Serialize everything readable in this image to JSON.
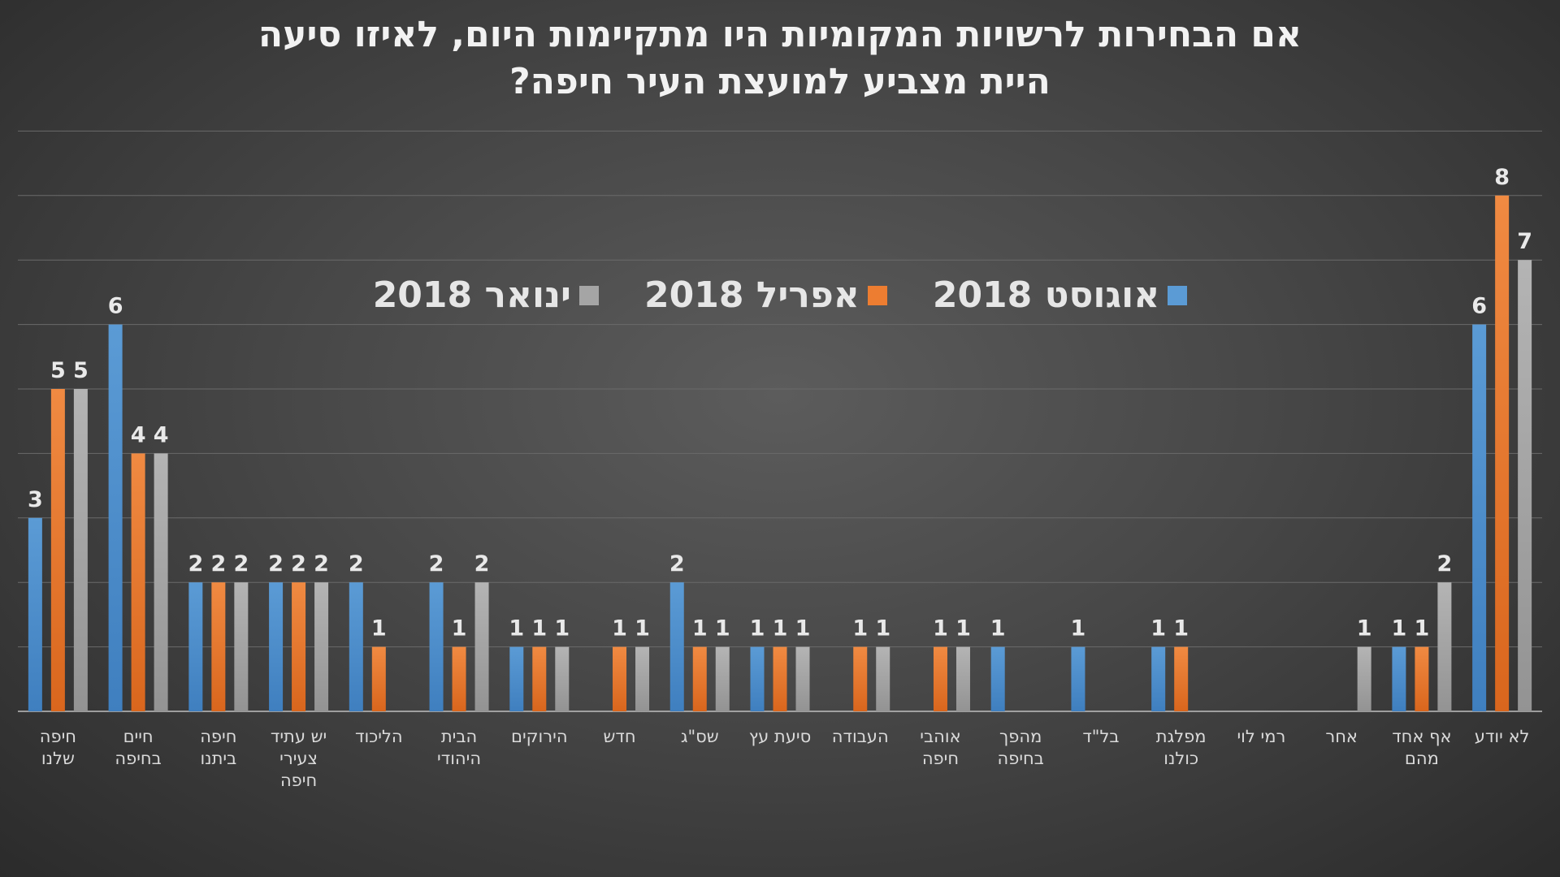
{
  "chart_data": {
    "type": "bar",
    "title_lines": [
      "אם הבחירות לרשויות המקומיות היו מתקיימות היום, לאיזו סיעה",
      "היית מצביע למועצת העיר חיפה?"
    ],
    "categories": [
      [
        "חיפה",
        "שלנו"
      ],
      [
        "חיים",
        "בחיפה"
      ],
      [
        "חיפה",
        "ביתנו"
      ],
      [
        "יש עתיד",
        "צעירי",
        "חיפה"
      ],
      [
        "הליכוד"
      ],
      [
        "הבית",
        "היהודי"
      ],
      [
        "הירוקים"
      ],
      [
        "חדש"
      ],
      [
        "שס\"ג"
      ],
      [
        "סיעת עץ"
      ],
      [
        "העבודה"
      ],
      [
        "אוהבי",
        "חיפה"
      ],
      [
        "מהפך",
        "בחיפה"
      ],
      [
        "בל\"ד"
      ],
      [
        "מפלגת",
        "כולנו"
      ],
      [
        "רמי לוי"
      ],
      [
        "אחר"
      ],
      [
        "אף אחד",
        "מהם"
      ],
      [
        "לא יודע"
      ]
    ],
    "series": [
      {
        "name": "אוגוסט 2018",
        "color": "#5b9bd5",
        "values": [
          3,
          6,
          2,
          2,
          2,
          2,
          1,
          null,
          2,
          1,
          null,
          null,
          1,
          1,
          1,
          null,
          null,
          1,
          6
        ]
      },
      {
        "name": "אפריל 2018",
        "color": "#ed7d31",
        "values": [
          5,
          4,
          2,
          2,
          1,
          1,
          1,
          1,
          1,
          1,
          1,
          1,
          null,
          null,
          1,
          null,
          null,
          1,
          8
        ]
      },
      {
        "name": "ינואר 2018",
        "color": "#a5a5a5",
        "values": [
          5,
          4,
          2,
          2,
          null,
          2,
          1,
          1,
          1,
          1,
          1,
          1,
          null,
          null,
          null,
          null,
          1,
          2,
          7
        ]
      }
    ],
    "ylim": [
      0,
      9
    ],
    "grid": true,
    "data_labels": true,
    "legend_position": "top-center"
  }
}
